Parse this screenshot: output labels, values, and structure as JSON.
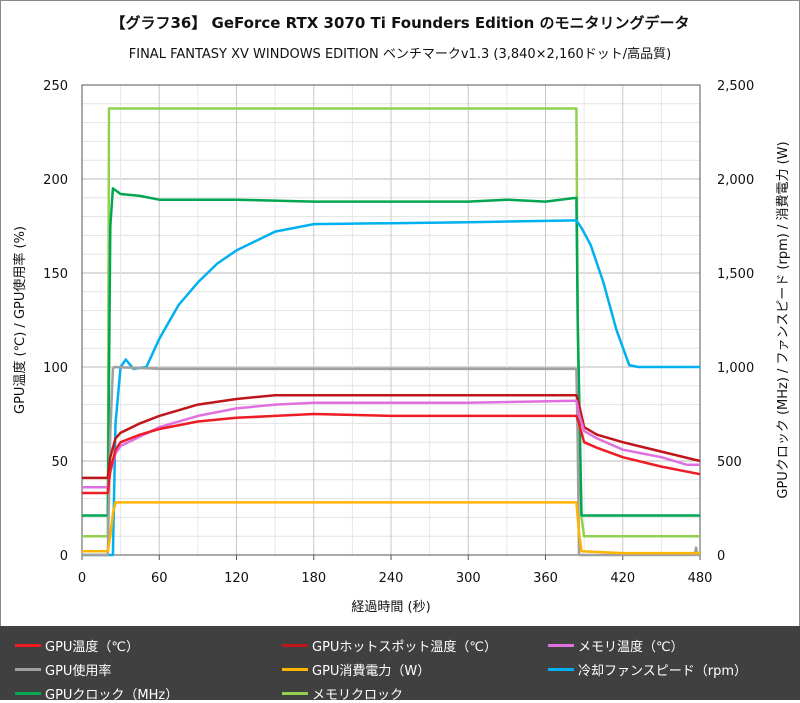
{
  "chart_data": {
    "type": "line",
    "title": "【グラフ36】 GeForce RTX 3070 Ti Founders Edition のモニタリングデータ",
    "subtitle": "FINAL FANTASY XV WINDOWS EDITION ベンチマークv1.3 (3,840×2,160ドット/高品質)",
    "xlabel": "経過時間 (秒)",
    "ylabel": "GPU温度 (℃) / GPU使用率 (%)",
    "y2label": "GPUクロック (MHz) / ファンスピード (rpm) / 消費電力 (W)",
    "xlim": [
      0,
      480
    ],
    "ylim": [
      0,
      250
    ],
    "y2lim": [
      0,
      2500
    ],
    "xticks": [
      "0",
      "60",
      "120",
      "180",
      "240",
      "300",
      "360",
      "420",
      "480"
    ],
    "yticks": [
      "0",
      "50",
      "100",
      "150",
      "200",
      "250"
    ],
    "y2ticks": [
      "0",
      "500",
      "1,000",
      "1,500",
      "2,000",
      "2,500"
    ],
    "grid": true,
    "legend_position": "bottom",
    "series": [
      {
        "name": "GPU温度（℃）",
        "color": "#ee1c25",
        "axis": "left",
        "points": [
          [
            0,
            33
          ],
          [
            20,
            33
          ],
          [
            22,
            45
          ],
          [
            26,
            56
          ],
          [
            30,
            60
          ],
          [
            45,
            64
          ],
          [
            60,
            67
          ],
          [
            90,
            71
          ],
          [
            120,
            73
          ],
          [
            150,
            74
          ],
          [
            180,
            75
          ],
          [
            240,
            74
          ],
          [
            300,
            74
          ],
          [
            384,
            74
          ],
          [
            386,
            70
          ],
          [
            390,
            60
          ],
          [
            400,
            57
          ],
          [
            420,
            52
          ],
          [
            450,
            47
          ],
          [
            480,
            43
          ]
        ]
      },
      {
        "name": "GPUホットスポット温度（℃）",
        "color": "#c0151b",
        "axis": "left",
        "points": [
          [
            0,
            41
          ],
          [
            20,
            41
          ],
          [
            22,
            52
          ],
          [
            26,
            62
          ],
          [
            30,
            65
          ],
          [
            45,
            70
          ],
          [
            60,
            74
          ],
          [
            90,
            80
          ],
          [
            120,
            83
          ],
          [
            150,
            85
          ],
          [
            180,
            85
          ],
          [
            240,
            85
          ],
          [
            300,
            85
          ],
          [
            384,
            85
          ],
          [
            386,
            80
          ],
          [
            390,
            68
          ],
          [
            400,
            64
          ],
          [
            420,
            60
          ],
          [
            450,
            55
          ],
          [
            480,
            50
          ]
        ]
      },
      {
        "name": "メモリ温度（℃）",
        "color": "#e070e0",
        "axis": "left",
        "points": [
          [
            0,
            36
          ],
          [
            20,
            36
          ],
          [
            22,
            44
          ],
          [
            26,
            54
          ],
          [
            30,
            58
          ],
          [
            45,
            63
          ],
          [
            60,
            68
          ],
          [
            90,
            74
          ],
          [
            120,
            78
          ],
          [
            150,
            80
          ],
          [
            180,
            81
          ],
          [
            240,
            81
          ],
          [
            300,
            81
          ],
          [
            384,
            82
          ],
          [
            386,
            75
          ],
          [
            390,
            66
          ],
          [
            400,
            62
          ],
          [
            420,
            56
          ],
          [
            450,
            52
          ],
          [
            470,
            48
          ],
          [
            480,
            48
          ]
        ]
      },
      {
        "name": "GPU使用率",
        "color": "#a0a0a0",
        "axis": "left",
        "points": [
          [
            0,
            0
          ],
          [
            20,
            0
          ],
          [
            22,
            65
          ],
          [
            24,
            99
          ],
          [
            25,
            100
          ],
          [
            60,
            99
          ],
          [
            120,
            99
          ],
          [
            240,
            99
          ],
          [
            300,
            99
          ],
          [
            384,
            99
          ],
          [
            385,
            60
          ],
          [
            386,
            0
          ],
          [
            476,
            0
          ],
          [
            477,
            4
          ],
          [
            478,
            0
          ],
          [
            480,
            0
          ]
        ]
      },
      {
        "name": "GPU消費電力（W）",
        "color": "#ffb400",
        "axis": "left",
        "points": [
          [
            0,
            2
          ],
          [
            20,
            2
          ],
          [
            22,
            10
          ],
          [
            24,
            22
          ],
          [
            26,
            28
          ],
          [
            60,
            28
          ],
          [
            120,
            28
          ],
          [
            240,
            28
          ],
          [
            300,
            28
          ],
          [
            384,
            28
          ],
          [
            386,
            12
          ],
          [
            388,
            2
          ],
          [
            420,
            1
          ],
          [
            480,
            1
          ]
        ]
      },
      {
        "name": "冷却ファンスピード（rpm）",
        "color": "#00b0f0",
        "axis": "right",
        "points": [
          [
            0,
            0
          ],
          [
            24,
            0
          ],
          [
            26,
            700
          ],
          [
            30,
            1000
          ],
          [
            34,
            1040
          ],
          [
            40,
            990
          ],
          [
            50,
            1000
          ],
          [
            60,
            1150
          ],
          [
            75,
            1330
          ],
          [
            90,
            1450
          ],
          [
            105,
            1550
          ],
          [
            120,
            1620
          ],
          [
            135,
            1670
          ],
          [
            150,
            1720
          ],
          [
            165,
            1740
          ],
          [
            180,
            1760
          ],
          [
            240,
            1765
          ],
          [
            300,
            1770
          ],
          [
            384,
            1780
          ],
          [
            388,
            1740
          ],
          [
            395,
            1650
          ],
          [
            405,
            1450
          ],
          [
            415,
            1200
          ],
          [
            425,
            1010
          ],
          [
            432,
            1000
          ],
          [
            480,
            1000
          ]
        ]
      },
      {
        "name": "GPUクロック（MHz）",
        "color": "#00a650",
        "axis": "right",
        "points": [
          [
            0,
            210
          ],
          [
            20,
            210
          ],
          [
            22,
            1750
          ],
          [
            24,
            1950
          ],
          [
            30,
            1920
          ],
          [
            45,
            1910
          ],
          [
            60,
            1890
          ],
          [
            120,
            1890
          ],
          [
            180,
            1880
          ],
          [
            240,
            1880
          ],
          [
            300,
            1880
          ],
          [
            330,
            1890
          ],
          [
            360,
            1880
          ],
          [
            384,
            1900
          ],
          [
            385,
            1250
          ],
          [
            388,
            210
          ],
          [
            480,
            210
          ]
        ]
      },
      {
        "name": "メモリクロック",
        "color": "#92d050",
        "axis": "right",
        "points": [
          [
            0,
            100
          ],
          [
            20,
            100
          ],
          [
            21,
            2375
          ],
          [
            384,
            2375
          ],
          [
            385,
            1250
          ],
          [
            386,
            700
          ],
          [
            388,
            200
          ],
          [
            390,
            100
          ],
          [
            480,
            100
          ]
        ]
      }
    ]
  }
}
